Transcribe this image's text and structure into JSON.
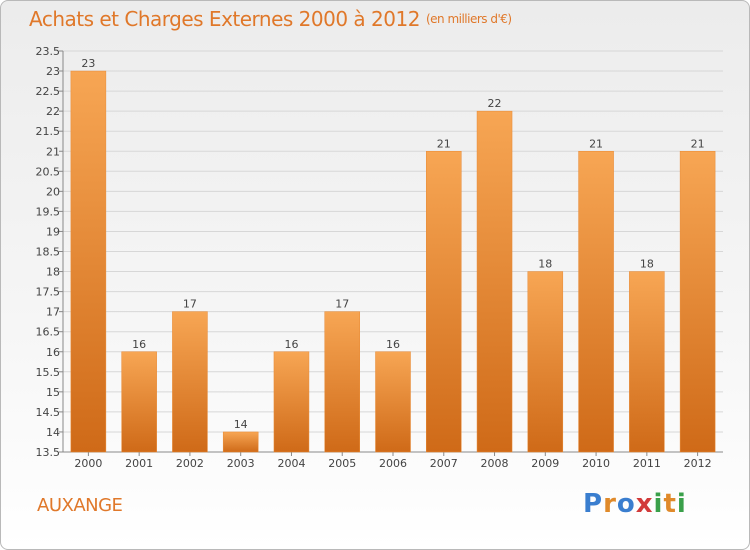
{
  "header": {
    "title": "Achats et Charges Externes 2000 à 2012",
    "unit": "(en milliers d'€)"
  },
  "commune": "AUXANGE",
  "logo": {
    "text": "Proxiti"
  },
  "colors": {
    "bar": "#f0923a",
    "bar_dark": "#d2691e",
    "accent": "#e0782a"
  },
  "chart_data": {
    "type": "bar",
    "categories": [
      "2000",
      "2001",
      "2002",
      "2003",
      "2004",
      "2005",
      "2006",
      "2007",
      "2008",
      "2009",
      "2010",
      "2011",
      "2012"
    ],
    "values": [
      23,
      16,
      17,
      14,
      16,
      17,
      16,
      21,
      22,
      18,
      21,
      18,
      21
    ],
    "ylim": [
      13.5,
      23.5
    ],
    "ytick_step": 0.5,
    "grid": true,
    "title": "Achats et Charges Externes 2000 à 2012",
    "xlabel": "",
    "ylabel": ""
  }
}
